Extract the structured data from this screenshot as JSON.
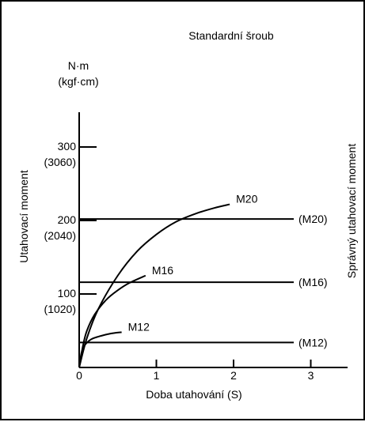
{
  "chart_data": {
    "type": "line",
    "title": "Standardní šroub",
    "xlabel": "Doba utahování (S)",
    "ylabel": "Utahovací moment",
    "right_label": "Správný utahovací moment",
    "y_unit": "N·m",
    "y_unit_alt": "(kgf·cm)",
    "xlim": [
      0,
      3.5
    ],
    "ylim": [
      0,
      340
    ],
    "x_ticks": [
      {
        "value": 0,
        "label": "0"
      },
      {
        "value": 1,
        "label": "1"
      },
      {
        "value": 2,
        "label": "2"
      },
      {
        "value": 3,
        "label": "3"
      }
    ],
    "y_ticks": [
      {
        "value": 300,
        "label": "300",
        "alt": "(3060)"
      },
      {
        "value": 200,
        "label": "200",
        "alt": "(2040)"
      },
      {
        "value": 100,
        "label": "100",
        "alt": "(1020)"
      }
    ],
    "series": [
      {
        "name": "M20",
        "color": "#000000",
        "points": [
          [
            0,
            0
          ],
          [
            0.1,
            40
          ],
          [
            0.25,
            80
          ],
          [
            0.5,
            125
          ],
          [
            0.75,
            158
          ],
          [
            1.0,
            181
          ],
          [
            1.25,
            198
          ],
          [
            1.5,
            209
          ],
          [
            1.75,
            217
          ],
          [
            1.95,
            222
          ]
        ]
      },
      {
        "name": "M16",
        "color": "#000000",
        "points": [
          [
            0,
            0
          ],
          [
            0.05,
            30
          ],
          [
            0.1,
            50
          ],
          [
            0.2,
            72
          ],
          [
            0.35,
            92
          ],
          [
            0.5,
            105
          ],
          [
            0.65,
            115
          ],
          [
            0.86,
            125
          ]
        ]
      },
      {
        "name": "M12",
        "color": "#000000",
        "points": [
          [
            0,
            0
          ],
          [
            0.03,
            20
          ],
          [
            0.07,
            30
          ],
          [
            0.15,
            38
          ],
          [
            0.25,
            42
          ],
          [
            0.4,
            46
          ],
          [
            0.55,
            48
          ]
        ]
      }
    ],
    "reference_lines": [
      {
        "name": "(M20)",
        "value": 202
      },
      {
        "name": "(M16)",
        "value": 116
      },
      {
        "name": "(M12)",
        "value": 34
      }
    ]
  }
}
